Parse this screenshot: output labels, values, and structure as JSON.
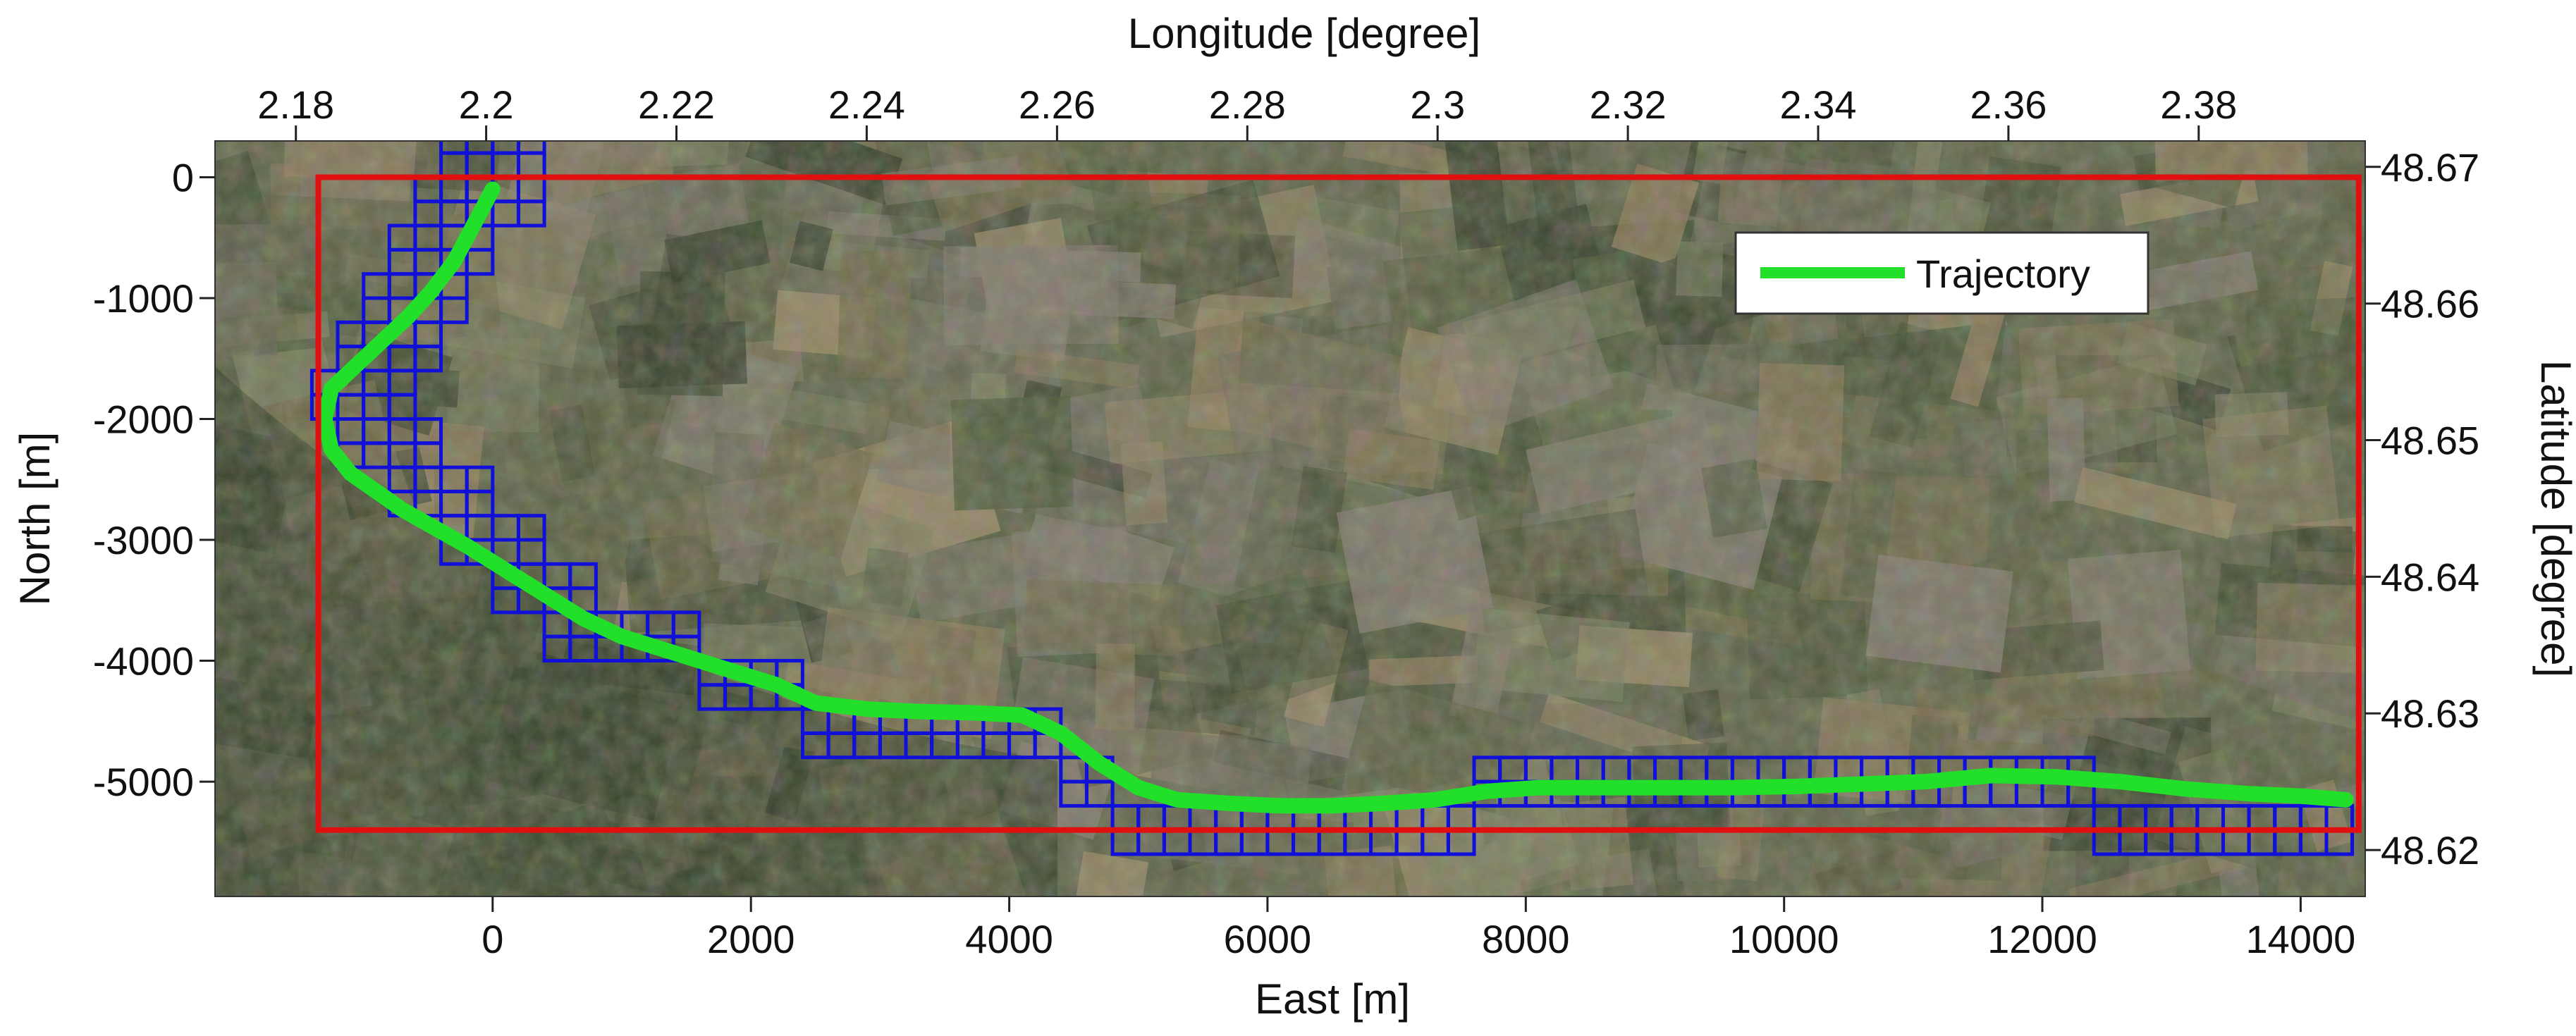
{
  "chart_data": {
    "type": "scatter",
    "xlabel_top": "Longitude [degree]",
    "xlabel_bottom": "East [m]",
    "ylabel_left": "North [m]",
    "ylabel_right": "Latitude [degree]",
    "x_bottom": {
      "range": [
        -2150,
        14500
      ],
      "ticks": [
        "0",
        "2000",
        "4000",
        "6000",
        "8000",
        "10000",
        "12000",
        "14000"
      ],
      "tick_values": [
        0,
        2000,
        4000,
        6000,
        8000,
        10000,
        12000,
        14000
      ]
    },
    "y_left": {
      "range": [
        -5950,
        300
      ],
      "ticks": [
        "0",
        "-1000",
        "-2000",
        "-3000",
        "-4000",
        "-5000"
      ],
      "tick_values": [
        0,
        -1000,
        -2000,
        -3000,
        -4000,
        -5000
      ]
    },
    "x_top": {
      "range": [
        2.1715,
        2.3975
      ],
      "ticks": [
        "2.18",
        "2.2",
        "2.22",
        "2.24",
        "2.26",
        "2.28",
        "2.3",
        "2.32",
        "2.34",
        "2.36",
        "2.38"
      ],
      "tick_values": [
        2.18,
        2.2,
        2.22,
        2.24,
        2.26,
        2.28,
        2.3,
        2.32,
        2.34,
        2.36,
        2.38
      ]
    },
    "y_right": {
      "range": [
        48.6166,
        48.6719
      ],
      "ticks": [
        "48.67",
        "48.66",
        "48.65",
        "48.64",
        "48.63",
        "48.62"
      ],
      "tick_values": [
        48.67,
        48.66,
        48.65,
        48.64,
        48.63,
        48.62
      ]
    },
    "legend": {
      "entries": [
        "Trajectory"
      ],
      "position": "top-right"
    },
    "background": "satellite imagery",
    "series": [
      {
        "name": "Trajectory",
        "color": "#22e02a",
        "x": [
          0,
          -150,
          -300,
          -480,
          -650,
          -850,
          -1050,
          -1250,
          -1300,
          -1250,
          -1100,
          -900,
          -700,
          -450,
          -200,
          100,
          400,
          700,
          1000,
          1300,
          1600,
          1900,
          2200,
          2500,
          2900,
          3300,
          3700,
          4100,
          4400,
          4700,
          5000,
          5300,
          5700,
          6100,
          6500,
          6900,
          7300,
          7700,
          8100,
          8600,
          9100,
          9600,
          10100,
          10600,
          11100,
          11600,
          12100,
          12600,
          13100,
          13600,
          14000,
          14350
        ],
        "y": [
          -100,
          -400,
          -700,
          -950,
          -1150,
          -1350,
          -1550,
          -1750,
          -2000,
          -2250,
          -2450,
          -2600,
          -2750,
          -2900,
          -3050,
          -3250,
          -3450,
          -3650,
          -3800,
          -3900,
          -4000,
          -4100,
          -4200,
          -4350,
          -4400,
          -4420,
          -4430,
          -4450,
          -4600,
          -4850,
          -5050,
          -5150,
          -5180,
          -5200,
          -5200,
          -5180,
          -5150,
          -5080,
          -5050,
          -5050,
          -5050,
          -5050,
          -5040,
          -5020,
          -5000,
          -4950,
          -4960,
          -5000,
          -5060,
          -5100,
          -5120,
          -5150
        ]
      }
    ],
    "reference_area": {
      "color": "#e01010",
      "east": [
        -1350,
        14450
      ],
      "north": [
        -5400,
        0
      ]
    },
    "grid_blocks": {
      "color": "#1010d8",
      "size_m": 400,
      "cells": [
        [
          -400,
          0
        ],
        [
          0,
          0
        ],
        [
          -400,
          -400
        ],
        [
          0,
          -400
        ],
        [
          -600,
          -400
        ],
        [
          -800,
          -800
        ],
        [
          -400,
          -800
        ],
        [
          -1000,
          -1200
        ],
        [
          -600,
          -1200
        ],
        [
          -1200,
          -1600
        ],
        [
          -800,
          -1600
        ],
        [
          -1400,
          -2000
        ],
        [
          -1000,
          -2000
        ],
        [
          -1200,
          -2400
        ],
        [
          -800,
          -2400
        ],
        [
          -800,
          -2800
        ],
        [
          -400,
          -2800
        ],
        [
          -400,
          -3200
        ],
        [
          0,
          -3200
        ],
        [
          0,
          -3600
        ],
        [
          400,
          -3600
        ],
        [
          400,
          -4000
        ],
        [
          800,
          -4000
        ],
        [
          1200,
          -4000
        ],
        [
          1600,
          -4400
        ],
        [
          2000,
          -4400
        ],
        [
          2400,
          -4800
        ],
        [
          2800,
          -4800
        ],
        [
          3200,
          -4800
        ],
        [
          3600,
          -4800
        ],
        [
          4000,
          -4800
        ],
        [
          4400,
          -5200
        ],
        [
          4800,
          -5600
        ],
        [
          5200,
          -5600
        ],
        [
          5600,
          -5600
        ],
        [
          6000,
          -5600
        ],
        [
          6400,
          -5600
        ],
        [
          6800,
          -5600
        ],
        [
          7200,
          -5600
        ],
        [
          7600,
          -5200
        ],
        [
          8000,
          -5200
        ],
        [
          8400,
          -5200
        ],
        [
          8800,
          -5200
        ],
        [
          9200,
          -5200
        ],
        [
          9600,
          -5200
        ],
        [
          10000,
          -5200
        ],
        [
          10400,
          -5200
        ],
        [
          10800,
          -5200
        ],
        [
          11200,
          -5200
        ],
        [
          11600,
          -5200
        ],
        [
          12000,
          -5200
        ],
        [
          12400,
          -5600
        ],
        [
          12800,
          -5600
        ],
        [
          13200,
          -5600
        ],
        [
          13600,
          -5600
        ],
        [
          14000,
          -5600
        ]
      ]
    }
  }
}
